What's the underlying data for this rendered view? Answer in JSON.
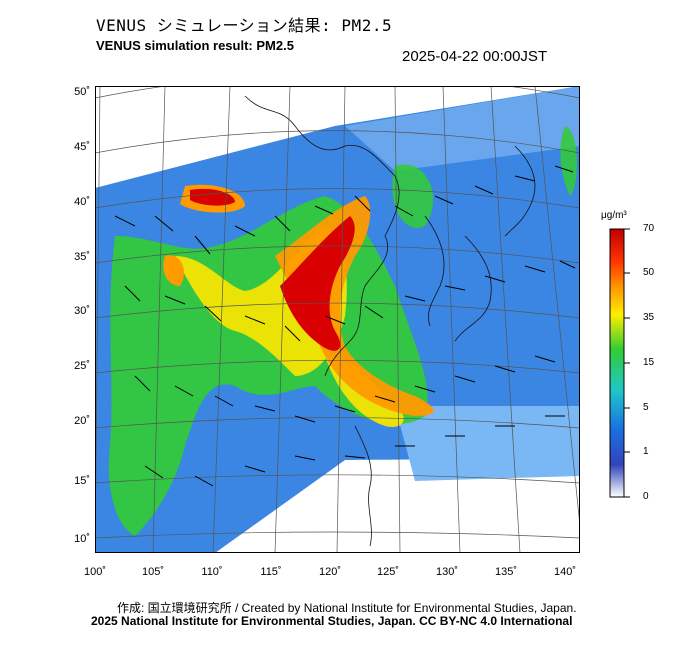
{
  "header": {
    "title_jp": "VENUS シミュレーション結果: PM2.5",
    "title_en": "VENUS simulation result: PM2.5",
    "timestamp": "2025-04-22 00:00JST"
  },
  "map": {
    "lat_labels": [
      "50˚",
      "45˚",
      "40˚",
      "35˚",
      "30˚",
      "25˚",
      "20˚",
      "15˚",
      "10˚"
    ],
    "lon_labels": [
      "100˚",
      "105˚",
      "110˚",
      "115˚",
      "120˚",
      "125˚",
      "130˚",
      "135˚",
      "140˚"
    ],
    "colors": {
      "high": "#d40000",
      "mid_high": "#ff9900",
      "mid": "#ffee00",
      "mid_low": "#22cc22",
      "low": "#1a90ff",
      "very_low": "#2233cc",
      "none": "#ffffff"
    }
  },
  "legend": {
    "unit": "μg/m³",
    "ticks": [
      "70",
      "50",
      "35",
      "15",
      "5",
      "1",
      "0"
    ]
  },
  "footer": {
    "credit_jp": "作成: 国立環境研究所 / Created by National Institute for Environmental Studies, Japan.",
    "credit_copyright": "2025 National Institute for Environmental Studies, Japan. CC BY-NC 4.0 International"
  }
}
